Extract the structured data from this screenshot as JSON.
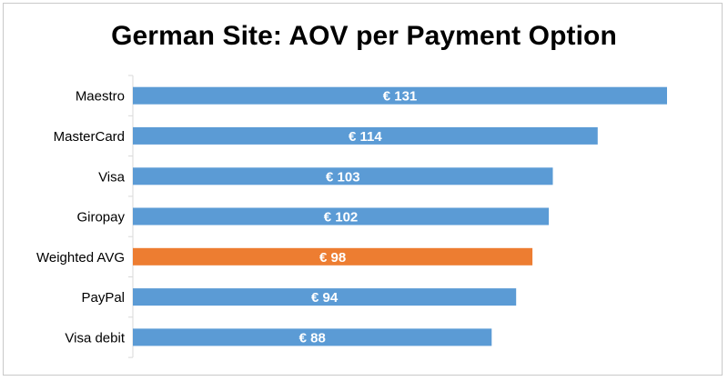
{
  "chart_data": {
    "type": "bar",
    "orientation": "horizontal",
    "title": "German Site: AOV per Payment Option",
    "categories": [
      "Maestro",
      "MasterCard",
      "Visa",
      "Giropay",
      "Weighted AVG",
      "PayPal",
      "Visa debit"
    ],
    "values": [
      131,
      114,
      103,
      102,
      98,
      94,
      88
    ],
    "data_labels": [
      "€ 131",
      "€ 114",
      "€ 103",
      "€ 102",
      "€ 98",
      "€ 94",
      "€ 88"
    ],
    "highlight_category": "Weighted AVG",
    "xlim": [
      0,
      131
    ],
    "grid": false,
    "legend": "none",
    "value_axis_visible": false
  },
  "colors": {
    "bar": "#5b9bd5",
    "highlight": "#ed7d31",
    "label_text": "#ffffff",
    "axis": "#d9d9d9"
  }
}
